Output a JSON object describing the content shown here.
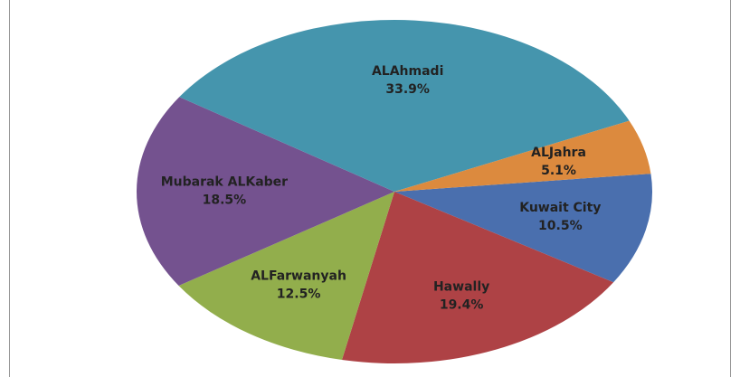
{
  "chart_data": {
    "type": "pie",
    "categories": [
      "Kuwait City",
      "Hawally",
      "ALFarwanyah",
      "Mubarak ALKaber",
      "ALAhmadi",
      "ALJahra"
    ],
    "values": [
      10.5,
      19.4,
      12.5,
      18.5,
      33.9,
      5.1
    ],
    "value_labels": [
      "10.5%",
      "19.4%",
      "12.5%",
      "18.5%",
      "33.9%",
      "5.1%"
    ],
    "colors": [
      "#4a6fae",
      "#ae4245",
      "#92ae4c",
      "#74528f",
      "#4595ad",
      "#dc8a3e"
    ]
  }
}
